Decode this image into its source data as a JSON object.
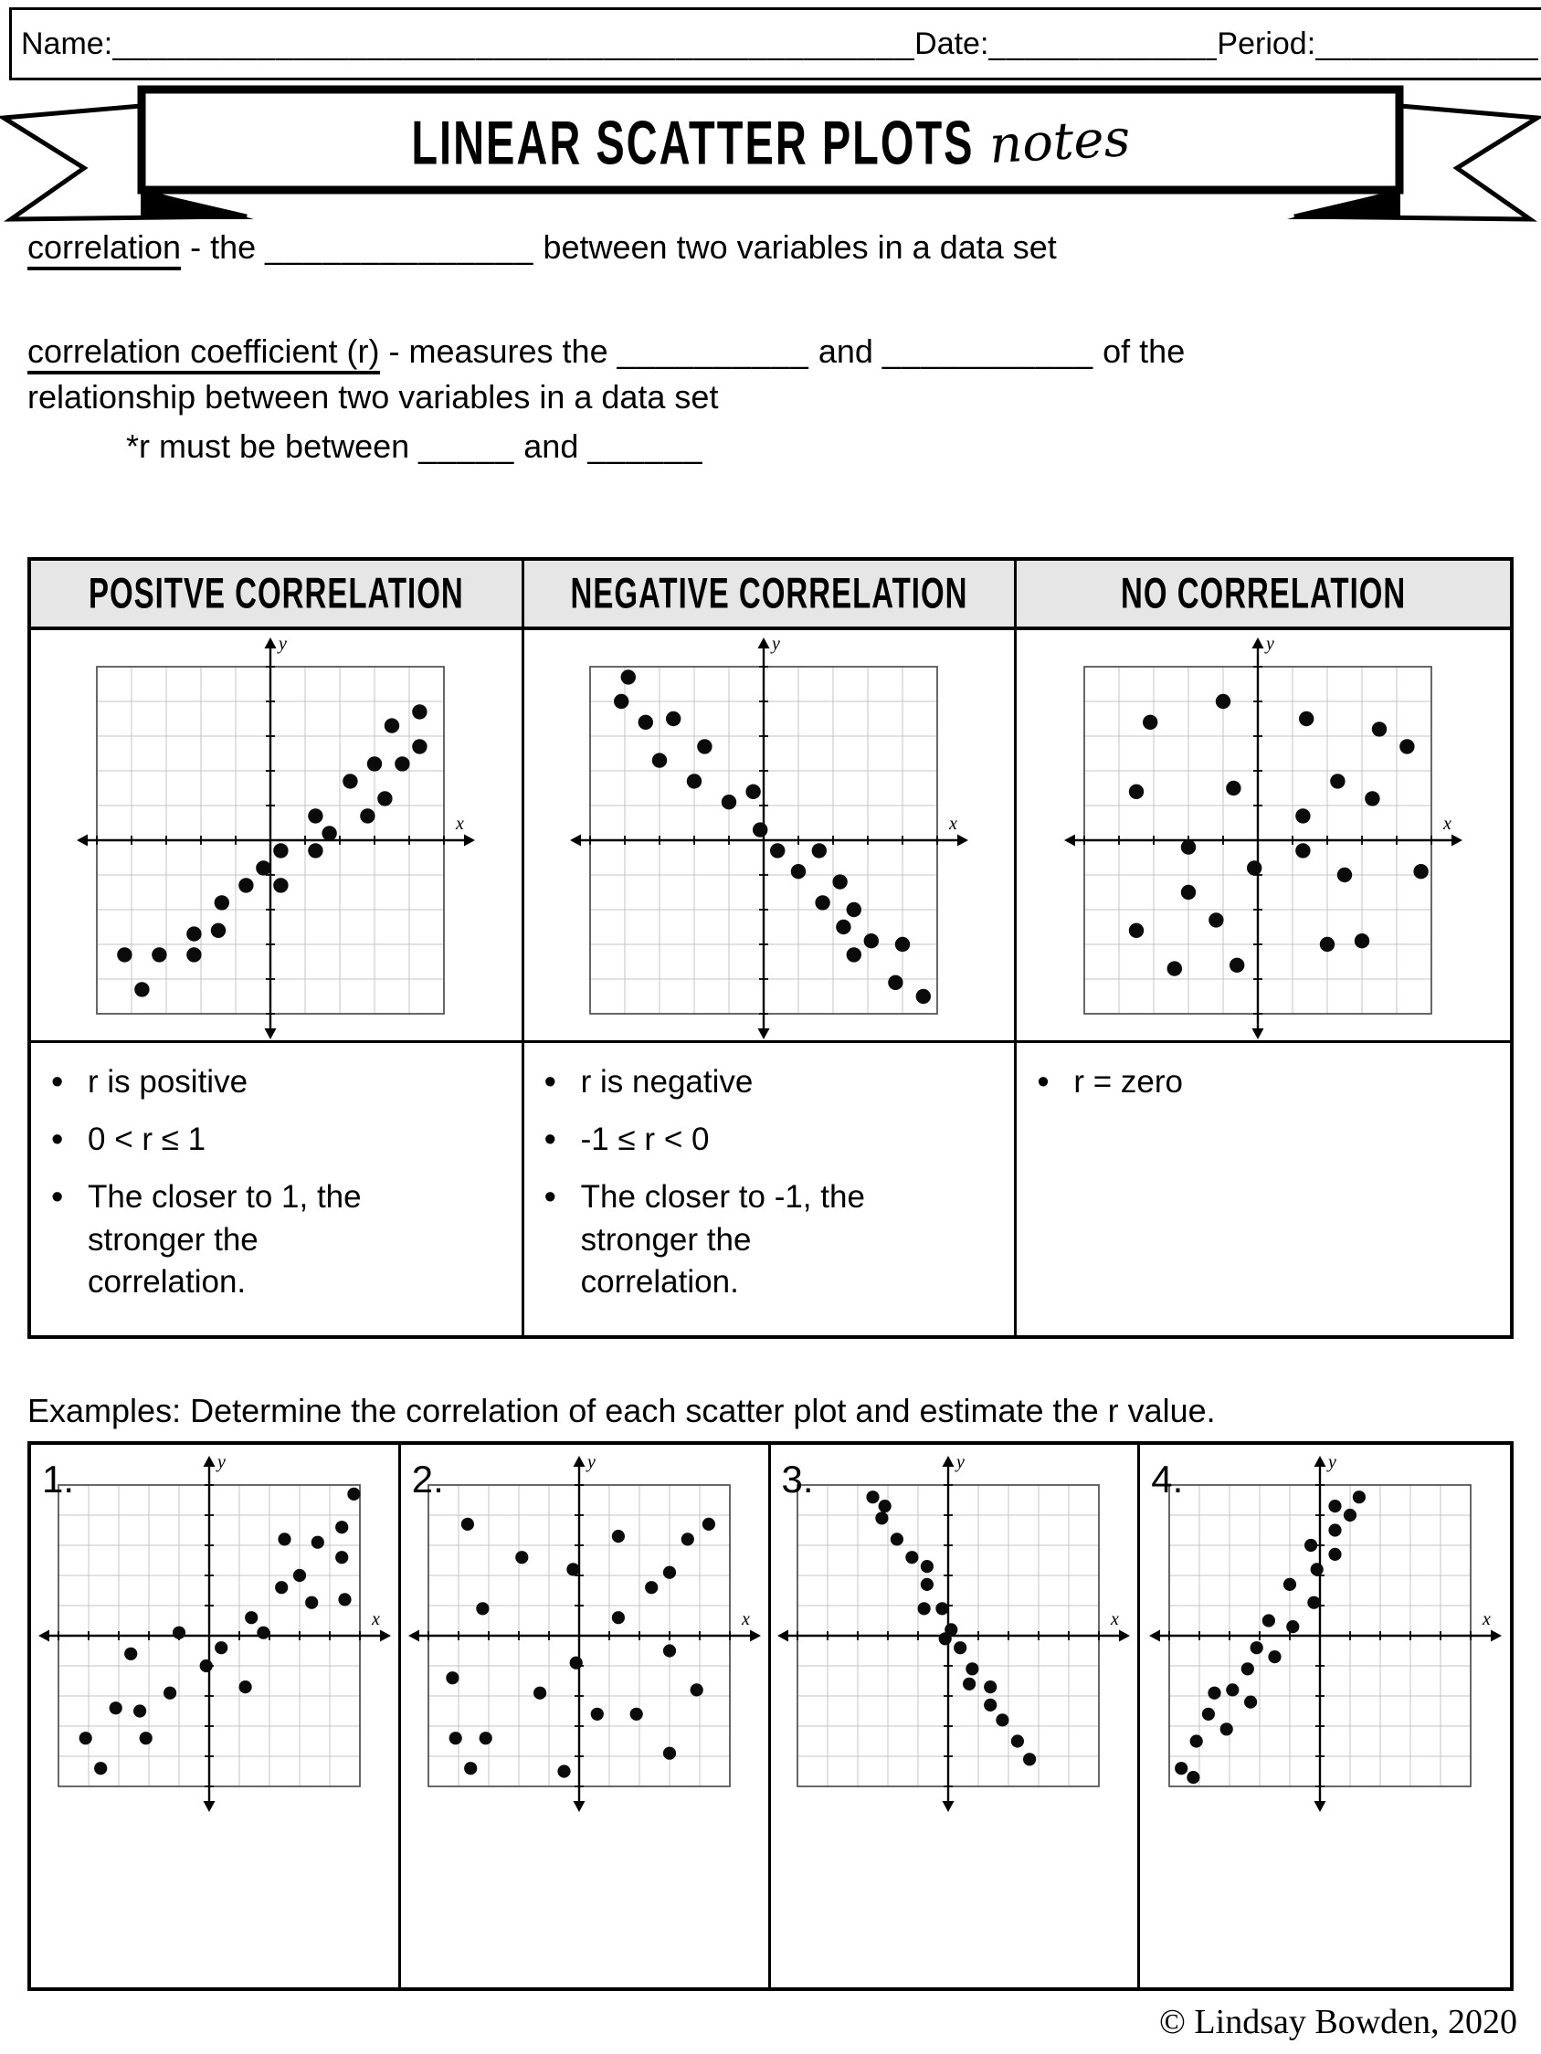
{
  "header": {
    "name_label": "Name:",
    "name_blank": "____________________________________________________________",
    "date_label": "Date:",
    "date_blank": "____________________",
    "period_label": "Period:",
    "period_blank": "____________________"
  },
  "banner": {
    "title": "LINEAR SCATTER PLOTS",
    "script": "notes"
  },
  "definitions": {
    "term1": "correlation",
    "term1_mid": " - the ",
    "term1_blank": "______________",
    "term1_end": " between two variables in a data set",
    "term2": "correlation coefficient (r)",
    "term2_mid": " - measures the ",
    "term2_blank1": "__________",
    "term2_and": " and ",
    "term2_blank2": "___________",
    "term2_end": " of the",
    "term2_line2": "relationship between two variables in a data set",
    "r_note_pre": "*r must be between ",
    "r_note_blank1": "_____",
    "r_note_and": " and ",
    "r_note_blank2": "______"
  },
  "notes_table": {
    "columns": [
      {
        "header": "POSITVE CORRELATION",
        "bullets": [
          "r is positive",
          "0 < r ≤ 1",
          "The closer to 1, the stronger the correlation."
        ]
      },
      {
        "header": "NEGATIVE CORRELATION",
        "bullets": [
          "r is negative",
          "-1 ≤ r < 0",
          "The closer to -1, the stronger the correlation."
        ]
      },
      {
        "header": "NO CORRELATION",
        "bullets": [
          "r = zero"
        ]
      }
    ]
  },
  "examples": {
    "instruction": "Examples: Determine the correlation of each scatter plot and estimate the r value.",
    "labels": [
      "1.",
      "2.",
      "3.",
      "4."
    ]
  },
  "footer": {
    "copyright": "© Lindsay Bowden, 2020"
  },
  "colors": {
    "header_row_bg": "#e6e6e6",
    "grid_line": "#c4c4c4",
    "plot_frame": "#4d4d4d",
    "ink": "#000000"
  },
  "chart_data": [
    {
      "type": "scatter",
      "title": "Positive correlation example",
      "xlabel": "x",
      "ylabel": "y",
      "xlim": [
        -5,
        5
      ],
      "ylim": [
        -5,
        5
      ],
      "grid": true,
      "points": [
        [
          -4.2,
          -3.3
        ],
        [
          -3.7,
          -4.3
        ],
        [
          -3.2,
          -3.3
        ],
        [
          -2.2,
          -3.3
        ],
        [
          -2.2,
          -2.7
        ],
        [
          -1.5,
          -2.6
        ],
        [
          -1.4,
          -1.8
        ],
        [
          -0.7,
          -1.3
        ],
        [
          -0.2,
          -0.8
        ],
        [
          0.3,
          -1.3
        ],
        [
          0.3,
          -0.3
        ],
        [
          1.3,
          -0.3
        ],
        [
          1.3,
          0.7
        ],
        [
          1.7,
          0.2
        ],
        [
          2.3,
          1.7
        ],
        [
          2.8,
          0.7
        ],
        [
          3.0,
          2.2
        ],
        [
          3.3,
          1.2
        ],
        [
          3.5,
          3.3
        ],
        [
          3.8,
          2.2
        ],
        [
          4.3,
          3.7
        ],
        [
          4.3,
          2.7
        ]
      ]
    },
    {
      "type": "scatter",
      "title": "Negative correlation example",
      "xlabel": "x",
      "ylabel": "y",
      "xlim": [
        -5,
        5
      ],
      "ylim": [
        -5,
        5
      ],
      "grid": true,
      "points": [
        [
          -4.1,
          4.0
        ],
        [
          -3.9,
          4.7
        ],
        [
          -3.4,
          3.4
        ],
        [
          -2.6,
          3.5
        ],
        [
          -3.0,
          2.3
        ],
        [
          -1.7,
          2.7
        ],
        [
          -2.0,
          1.7
        ],
        [
          -1.0,
          1.1
        ],
        [
          -0.3,
          1.4
        ],
        [
          -0.1,
          0.3
        ],
        [
          0.4,
          -0.3
        ],
        [
          1.6,
          -0.3
        ],
        [
          1.0,
          -0.9
        ],
        [
          2.2,
          -1.2
        ],
        [
          1.7,
          -1.8
        ],
        [
          2.6,
          -2.0
        ],
        [
          2.3,
          -2.5
        ],
        [
          3.1,
          -2.9
        ],
        [
          2.6,
          -3.3
        ],
        [
          4.0,
          -3.0
        ],
        [
          3.8,
          -4.1
        ],
        [
          4.6,
          -4.5
        ]
      ]
    },
    {
      "type": "scatter",
      "title": "No correlation example",
      "xlabel": "x",
      "ylabel": "y",
      "xlim": [
        -5,
        5
      ],
      "ylim": [
        -5,
        5
      ],
      "grid": true,
      "points": [
        [
          -1.0,
          4.0
        ],
        [
          -3.1,
          3.4
        ],
        [
          1.4,
          3.5
        ],
        [
          3.5,
          3.2
        ],
        [
          4.3,
          2.7
        ],
        [
          -3.5,
          1.4
        ],
        [
          -0.7,
          1.5
        ],
        [
          2.3,
          1.7
        ],
        [
          3.3,
          1.2
        ],
        [
          1.3,
          0.7
        ],
        [
          -2.0,
          -0.2
        ],
        [
          1.3,
          -0.3
        ],
        [
          -0.1,
          -0.8
        ],
        [
          2.5,
          -1.0
        ],
        [
          4.7,
          -0.9
        ],
        [
          -2.0,
          -1.5
        ],
        [
          -1.2,
          -2.3
        ],
        [
          -3.5,
          -2.6
        ],
        [
          2.0,
          -3.0
        ],
        [
          3.0,
          -2.9
        ],
        [
          -2.4,
          -3.7
        ],
        [
          -0.6,
          -3.6
        ]
      ]
    },
    {
      "type": "scatter",
      "title": "Example 1",
      "xlabel": "x",
      "ylabel": "y",
      "xlim": [
        -5,
        5
      ],
      "ylim": [
        -5,
        5
      ],
      "grid": true,
      "points": [
        [
          4.8,
          4.7
        ],
        [
          4.4,
          3.6
        ],
        [
          2.5,
          3.2
        ],
        [
          3.6,
          3.1
        ],
        [
          4.4,
          2.6
        ],
        [
          3.0,
          2.0
        ],
        [
          2.4,
          1.6
        ],
        [
          3.4,
          1.1
        ],
        [
          4.5,
          1.2
        ],
        [
          1.4,
          0.6
        ],
        [
          -1.0,
          0.1
        ],
        [
          1.8,
          0.1
        ],
        [
          0.4,
          -0.4
        ],
        [
          -2.6,
          -0.6
        ],
        [
          -0.1,
          -1.0
        ],
        [
          1.2,
          -1.7
        ],
        [
          -1.3,
          -1.9
        ],
        [
          -3.1,
          -2.4
        ],
        [
          -2.3,
          -2.5
        ],
        [
          -4.1,
          -3.4
        ],
        [
          -2.1,
          -3.4
        ],
        [
          -3.6,
          -4.4
        ]
      ]
    },
    {
      "type": "scatter",
      "title": "Example 2",
      "xlabel": "x",
      "ylabel": "y",
      "xlim": [
        -5,
        5
      ],
      "ylim": [
        -5,
        5
      ],
      "grid": true,
      "points": [
        [
          -3.7,
          3.7
        ],
        [
          1.3,
          3.3
        ],
        [
          4.3,
          3.7
        ],
        [
          3.6,
          3.2
        ],
        [
          -1.9,
          2.6
        ],
        [
          -0.2,
          2.2
        ],
        [
          3.0,
          2.1
        ],
        [
          2.4,
          1.6
        ],
        [
          -3.2,
          0.9
        ],
        [
          1.3,
          0.6
        ],
        [
          3.0,
          -0.5
        ],
        [
          -0.1,
          -0.9
        ],
        [
          -4.2,
          -1.4
        ],
        [
          -1.3,
          -1.9
        ],
        [
          3.9,
          -1.8
        ],
        [
          0.6,
          -2.6
        ],
        [
          1.9,
          -2.6
        ],
        [
          -4.1,
          -3.4
        ],
        [
          -3.1,
          -3.4
        ],
        [
          3.0,
          -3.9
        ],
        [
          -3.6,
          -4.4
        ],
        [
          -0.5,
          -4.5
        ]
      ]
    },
    {
      "type": "scatter",
      "title": "Example 3",
      "xlabel": "x",
      "ylabel": "y",
      "xlim": [
        -5,
        5
      ],
      "ylim": [
        -5,
        5
      ],
      "grid": true,
      "points": [
        [
          -2.5,
          4.6
        ],
        [
          -2.1,
          4.3
        ],
        [
          -2.2,
          3.9
        ],
        [
          -1.7,
          3.2
        ],
        [
          -1.2,
          2.6
        ],
        [
          -0.7,
          2.3
        ],
        [
          -0.7,
          1.7
        ],
        [
          -0.8,
          0.9
        ],
        [
          -0.2,
          0.9
        ],
        [
          0.1,
          0.2
        ],
        [
          -0.1,
          -0.1
        ],
        [
          0.4,
          -0.4
        ],
        [
          0.8,
          -1.1
        ],
        [
          0.7,
          -1.6
        ],
        [
          1.4,
          -1.7
        ],
        [
          1.4,
          -2.3
        ],
        [
          1.8,
          -2.8
        ],
        [
          2.3,
          -3.5
        ],
        [
          2.7,
          -4.1
        ]
      ]
    },
    {
      "type": "scatter",
      "title": "Example 4",
      "xlabel": "x",
      "ylabel": "y",
      "xlim": [
        -5,
        5
      ],
      "ylim": [
        -5,
        5
      ],
      "grid": true,
      "points": [
        [
          1.3,
          4.6
        ],
        [
          0.5,
          4.3
        ],
        [
          1.0,
          4.0
        ],
        [
          0.5,
          3.5
        ],
        [
          -0.3,
          3.0
        ],
        [
          0.5,
          2.7
        ],
        [
          -0.1,
          2.2
        ],
        [
          -1.0,
          1.7
        ],
        [
          -0.2,
          1.1
        ],
        [
          -1.7,
          0.5
        ],
        [
          -0.9,
          0.3
        ],
        [
          -2.1,
          -0.4
        ],
        [
          -1.5,
          -0.7
        ],
        [
          -2.4,
          -1.1
        ],
        [
          -2.9,
          -1.8
        ],
        [
          -3.5,
          -1.9
        ],
        [
          -2.3,
          -2.2
        ],
        [
          -3.7,
          -2.6
        ],
        [
          -3.1,
          -3.1
        ],
        [
          -4.1,
          -3.5
        ],
        [
          -4.6,
          -4.4
        ],
        [
          -4.2,
          -4.7
        ]
      ]
    }
  ]
}
